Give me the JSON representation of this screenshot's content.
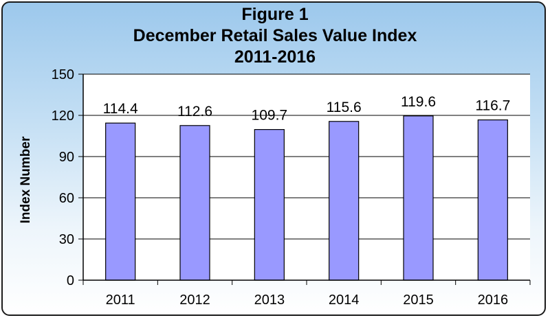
{
  "chart_data": {
    "type": "bar",
    "title": "Figure 1",
    "subtitle": "December Retail Sales Value Index",
    "subtitle2": "2011-2016",
    "xlabel": "",
    "ylabel": "Index Number",
    "categories": [
      "2011",
      "2012",
      "2013",
      "2014",
      "2015",
      "2016"
    ],
    "values": [
      114.4,
      112.6,
      109.7,
      115.6,
      119.6,
      116.7
    ],
    "data_labels": [
      "114.4",
      "112.6",
      "109.7",
      "115.6",
      "119.6",
      "116.7"
    ],
    "ylim": [
      0,
      150
    ],
    "yticks": [
      0,
      30,
      60,
      90,
      120,
      150
    ],
    "grid": true,
    "legend": "none",
    "bar_color": "#9999ff",
    "background_top": "#9cc8ec",
    "background_bottom": "#ffffff"
  }
}
